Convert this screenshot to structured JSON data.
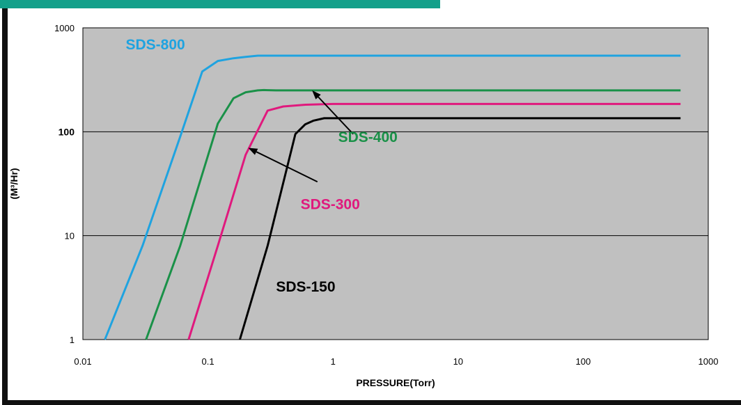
{
  "chart_data": {
    "type": "line",
    "title": "",
    "xlabel": "PRESSURE(Torr)",
    "ylabel": "(M³/Hr)",
    "x_scale": "log",
    "y_scale": "log",
    "xlim": [
      0.01,
      1000
    ],
    "ylim": [
      1,
      1000
    ],
    "x_ticks": [
      "0.01",
      "0.1",
      "1",
      "10",
      "100",
      "1000"
    ],
    "y_ticks": [
      {
        "label": "1",
        "bold": false
      },
      {
        "label": "10",
        "bold": false
      },
      {
        "label": "100",
        "bold": true
      },
      {
        "label": "1000",
        "bold": false
      }
    ],
    "grid": "horizontal",
    "plot_background": "#c0c0c0",
    "series": [
      {
        "name": "SDS-800",
        "color": "#1fa3e0",
        "x": [
          0.015,
          0.03,
          0.06,
          0.09,
          0.12,
          0.16,
          0.2,
          0.25,
          0.35,
          600
        ],
        "y": [
          1,
          8,
          90,
          380,
          480,
          510,
          525,
          540,
          540,
          540
        ]
      },
      {
        "name": "SDS-400",
        "color": "#1a9148",
        "x": [
          0.032,
          0.06,
          0.12,
          0.16,
          0.2,
          0.25,
          0.28,
          0.35,
          600
        ],
        "y": [
          1,
          8,
          120,
          210,
          240,
          250,
          252,
          250,
          250
        ]
      },
      {
        "name": "SDS-300",
        "color": "#e0197d",
        "x": [
          0.07,
          0.12,
          0.2,
          0.3,
          0.4,
          0.6,
          1.0,
          600
        ],
        "y": [
          1,
          8,
          60,
          160,
          175,
          182,
          185,
          185
        ]
      },
      {
        "name": "SDS-150",
        "color": "#000000",
        "x": [
          0.18,
          0.3,
          0.5,
          0.6,
          0.7,
          0.85,
          1.2,
          600
        ],
        "y": [
          1,
          8,
          95,
          118,
          128,
          135,
          135,
          135
        ]
      }
    ],
    "labels": [
      {
        "text": "SDS-800",
        "color": "#1fa3e0",
        "x": 0.022,
        "y": 620
      },
      {
        "text": "SDS-400",
        "color": "#1a9148",
        "x": 1.1,
        "y": 80
      },
      {
        "text": "SDS-300",
        "color": "#e0197d",
        "x": 0.55,
        "y": 18
      },
      {
        "text": "SDS-150",
        "color": "#000000",
        "x": 0.35,
        "y": 2.9
      }
    ],
    "arrows": [
      {
        "from": [
          1.45,
          95
        ],
        "to": [
          0.68,
          250
        ],
        "color": "#000000"
      },
      {
        "from": [
          0.75,
          33
        ],
        "to": [
          0.21,
          70
        ],
        "color": "#000000"
      }
    ]
  }
}
